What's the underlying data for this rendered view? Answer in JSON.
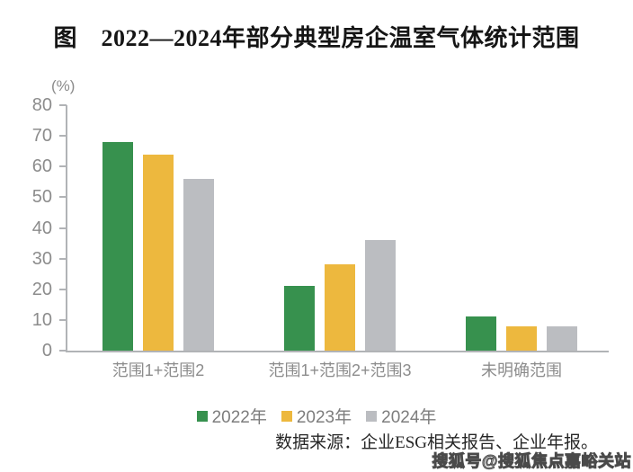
{
  "title": "图　2022—2024年部分典型房企温室气体统计范围",
  "chart_data": {
    "type": "bar",
    "title": "图　2022—2024年部分典型房企温室气体统计范围",
    "unit_label": "(%)",
    "categories": [
      "范围1+范围2",
      "范围1+范围2+范围3",
      "未明确范围"
    ],
    "series": [
      {
        "name": "2022年",
        "color": "#37914e",
        "values": [
          68,
          21,
          11
        ]
      },
      {
        "name": "2023年",
        "color": "#edb83e",
        "values": [
          64,
          28,
          8
        ]
      },
      {
        "name": "2024年",
        "color": "#bbbdc1",
        "values": [
          56,
          36,
          8
        ]
      }
    ],
    "ylim": [
      0,
      80
    ],
    "ytick_step": 10,
    "yticks": [
      0,
      10,
      20,
      30,
      40,
      50,
      60,
      70,
      80
    ],
    "grid": false,
    "legend_position": "bottom"
  },
  "source_note": "数据来源：企业ESG相关报告、企业年报。",
  "watermark": "搜狐号@搜狐焦点嘉峪关站",
  "colors": {
    "series_2022": "#37914e",
    "series_2023": "#edb83e",
    "series_2024": "#bbbdc1",
    "axis_line": "#b1b3b6",
    "axis_text": "#8c8c8c",
    "legend_text": "#7d7d7d",
    "title_text": "#151515",
    "background": "#ffffff"
  }
}
